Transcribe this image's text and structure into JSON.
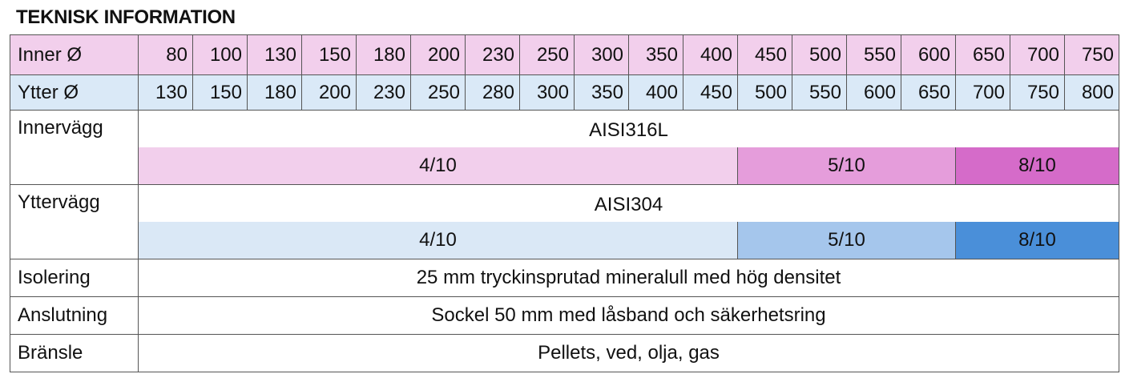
{
  "title": "TEKNISK INFORMATION",
  "inner_diameter": {
    "label": "Inner Ø",
    "values": [
      80,
      100,
      130,
      150,
      180,
      200,
      230,
      250,
      300,
      350,
      400,
      450,
      500,
      550,
      600,
      650,
      700,
      750
    ]
  },
  "outer_diameter": {
    "label": "Ytter Ø",
    "values": [
      130,
      150,
      180,
      200,
      230,
      250,
      280,
      300,
      350,
      400,
      450,
      500,
      550,
      600,
      650,
      700,
      750,
      800
    ]
  },
  "inner_wall": {
    "label": "Innervägg",
    "material": "AISI316L",
    "thickness": [
      "4/10",
      "5/10",
      "8/10"
    ]
  },
  "outer_wall": {
    "label": "Yttervägg",
    "material": "AISI304",
    "thickness": [
      "4/10",
      "5/10",
      "8/10"
    ]
  },
  "rows": [
    {
      "label": "Isolering",
      "value": "25 mm tryckinsprutad mineralull med hög densitet"
    },
    {
      "label": "Anslutning",
      "value": "Sockel 50 mm med låsband och säkerhetsring"
    },
    {
      "label": "Bränsle",
      "value": "Pellets, ved, olja, gas"
    }
  ]
}
